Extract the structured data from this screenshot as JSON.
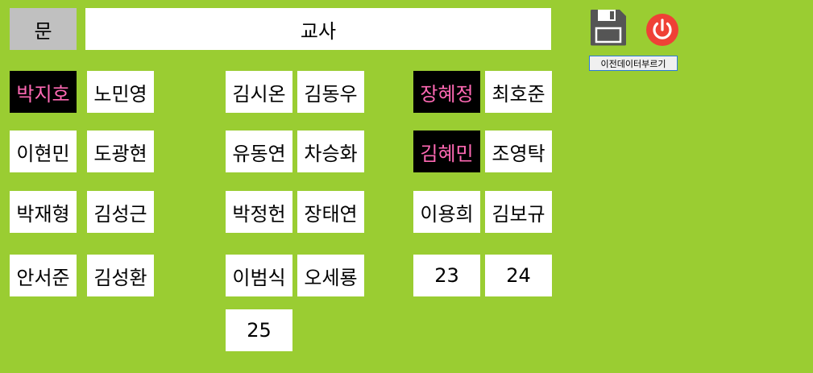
{
  "header": {
    "door_label": "문",
    "teacher_label": "교사"
  },
  "toolbar": {
    "save_icon": "floppy-disk-icon",
    "power_icon": "power-icon",
    "load_label": "이전데이터부르기",
    "accent_color": "#ef4136"
  },
  "colors": {
    "background": "#9acd32",
    "door": "#c0c0c0",
    "seat": "#ffffff",
    "seat_highlight": "#000000",
    "seat_highlight_text": "#ff69b4"
  },
  "seats": [
    {
      "label": "박지호",
      "highlighted": true
    },
    {
      "label": "노민영",
      "highlighted": false
    },
    {
      "label": "김시온",
      "highlighted": false
    },
    {
      "label": "김동우",
      "highlighted": false
    },
    {
      "label": "장혜정",
      "highlighted": true
    },
    {
      "label": "최호준",
      "highlighted": false
    },
    {
      "label": "이현민",
      "highlighted": false
    },
    {
      "label": "도광현",
      "highlighted": false
    },
    {
      "label": "유동연",
      "highlighted": false
    },
    {
      "label": "차승화",
      "highlighted": false
    },
    {
      "label": "김혜민",
      "highlighted": true
    },
    {
      "label": "조영탁",
      "highlighted": false
    },
    {
      "label": "박재형",
      "highlighted": false
    },
    {
      "label": "김성근",
      "highlighted": false
    },
    {
      "label": "박정헌",
      "highlighted": false
    },
    {
      "label": "장태연",
      "highlighted": false
    },
    {
      "label": "이용희",
      "highlighted": false
    },
    {
      "label": "김보규",
      "highlighted": false
    },
    {
      "label": "안서준",
      "highlighted": false
    },
    {
      "label": "김성환",
      "highlighted": false
    },
    {
      "label": "이범식",
      "highlighted": false
    },
    {
      "label": "오세룡",
      "highlighted": false
    },
    {
      "label": "23",
      "highlighted": false
    },
    {
      "label": "24",
      "highlighted": false
    },
    {
      "label": "25",
      "highlighted": false
    }
  ]
}
